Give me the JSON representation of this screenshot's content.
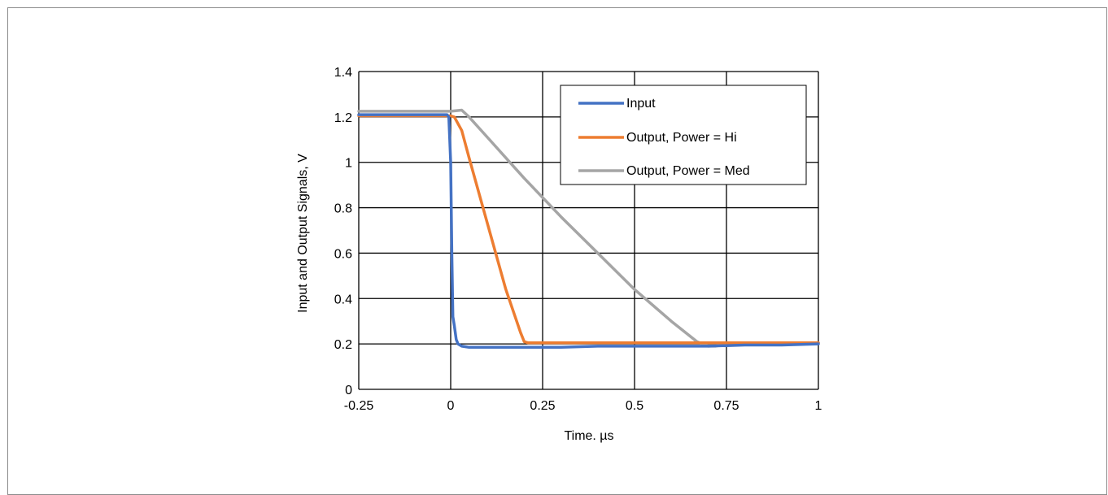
{
  "chart_data": {
    "type": "line",
    "title": "",
    "xlabel": "Time. µs",
    "ylabel": "Input  and Output  Signals, V",
    "xlim": [
      -0.25,
      1
    ],
    "ylim": [
      0,
      1.4
    ],
    "x_ticks": [
      -0.25,
      0,
      0.25,
      0.5,
      0.75,
      1
    ],
    "x_tick_labels": [
      "-0.25",
      "0",
      "0.25",
      "0.5",
      "0.75",
      "1"
    ],
    "y_ticks": [
      0,
      0.2,
      0.4,
      0.6,
      0.8,
      1,
      1.2,
      1.4
    ],
    "y_tick_labels": [
      "0",
      "0.2",
      "0.4",
      "0.6",
      "0.8",
      "1",
      "1.2",
      "1.4"
    ],
    "grid": true,
    "legend_position": "top-right",
    "series": [
      {
        "name": "Input",
        "color": "#4472C4",
        "x": [
          -0.25,
          -0.2,
          -0.1,
          -0.01,
          -0.005,
          0.0,
          0.003,
          0.006,
          0.01,
          0.015,
          0.02,
          0.03,
          0.05,
          0.1,
          0.2,
          0.3,
          0.4,
          0.5,
          0.6,
          0.7,
          0.8,
          0.9,
          1.0
        ],
        "y": [
          1.21,
          1.21,
          1.21,
          1.21,
          1.2,
          1.0,
          0.6,
          0.32,
          0.28,
          0.22,
          0.2,
          0.19,
          0.185,
          0.185,
          0.185,
          0.185,
          0.19,
          0.19,
          0.19,
          0.19,
          0.195,
          0.195,
          0.2
        ]
      },
      {
        "name": "Output, Power = Hi",
        "color": "#ED7D31",
        "x": [
          -0.25,
          -0.1,
          0.0,
          0.01,
          0.03,
          0.05,
          0.1,
          0.15,
          0.19,
          0.2,
          0.21,
          0.3,
          0.5,
          0.75,
          1.0
        ],
        "y": [
          1.205,
          1.205,
          1.205,
          1.2,
          1.14,
          1.02,
          0.73,
          0.44,
          0.25,
          0.21,
          0.205,
          0.205,
          0.205,
          0.205,
          0.205
        ]
      },
      {
        "name": "Output, Power = Med",
        "color": "#A5A5A5",
        "x": [
          -0.25,
          -0.1,
          0.0,
          0.03,
          0.05,
          0.1,
          0.2,
          0.3,
          0.4,
          0.5,
          0.6,
          0.67,
          0.7,
          0.72,
          0.75,
          0.85,
          1.0
        ],
        "y": [
          1.225,
          1.225,
          1.225,
          1.23,
          1.2,
          1.11,
          0.93,
          0.76,
          0.6,
          0.44,
          0.3,
          0.21,
          0.19,
          0.19,
          0.2,
          0.205,
          0.205
        ]
      }
    ]
  }
}
